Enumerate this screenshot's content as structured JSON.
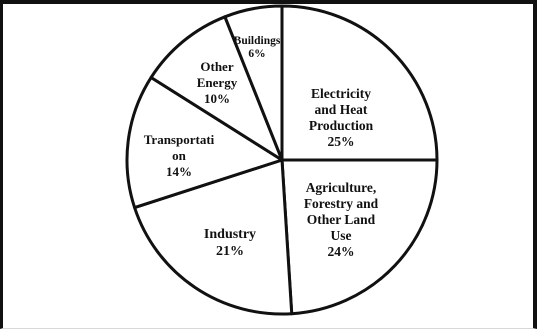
{
  "chart_data": {
    "type": "pie",
    "categories": [
      "Electricity and Heat Production",
      "Agriculture, Forestry and Other Land Use",
      "Industry",
      "Transportation",
      "Other Energy",
      "Buildings"
    ],
    "values": [
      25,
      24,
      21,
      14,
      10,
      6
    ],
    "slices": [
      {
        "label_lines": [
          "Electricity",
          "and Heat",
          "Production",
          "25%"
        ],
        "value": 25
      },
      {
        "label_lines": [
          "Agriculture,",
          "Forestry and",
          "Other Land",
          "Use",
          "24%"
        ],
        "value": 24
      },
      {
        "label_lines": [
          "Industry",
          "21%"
        ],
        "value": 21
      },
      {
        "label_lines": [
          "Transportati",
          "on",
          "14%"
        ],
        "value": 14
      },
      {
        "label_lines": [
          "Other",
          "Energy",
          "10%"
        ],
        "value": 10
      },
      {
        "label_lines": [
          "Buildings",
          "6%"
        ],
        "value": 6
      }
    ],
    "start": "12 o'clock",
    "direction": "clockwise",
    "legend": "none",
    "colors": {
      "fill": "#ffffff",
      "stroke": "#111111"
    }
  }
}
